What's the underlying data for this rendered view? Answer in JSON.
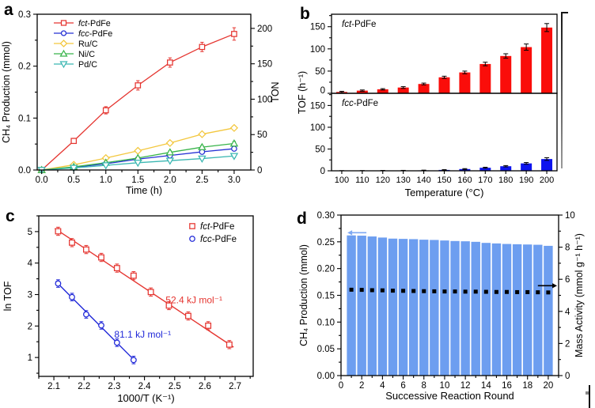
{
  "figure": {
    "background": "#ffffff",
    "panels": [
      {
        "label": "a"
      },
      {
        "label": "b"
      },
      {
        "label": "c"
      },
      {
        "label": "d"
      }
    ]
  },
  "chart_data": [
    {
      "panel": "a",
      "type": "line",
      "xlabel": "Time (h)",
      "ylabel": "CH₄ Production (mmol)",
      "y2label": "TON",
      "xlim": [
        -0.07,
        3.26
      ],
      "ylim": [
        0,
        0.3
      ],
      "y2lim": [
        0,
        220
      ],
      "xticks": [
        0.0,
        0.5,
        1.0,
        1.5,
        2.0,
        2.5,
        3.0
      ],
      "xtick_labels": [
        "0.0",
        "0.5",
        "1.0",
        "1.5",
        "2.0",
        "2.5",
        "3.0"
      ],
      "yticks": [
        0.0,
        0.1,
        0.2,
        0.3
      ],
      "ytick_labels": [
        "0.0",
        "0.1",
        "0.2",
        "0.3"
      ],
      "y2ticks": [
        0,
        50,
        100,
        150,
        200
      ],
      "y2tick_labels": [
        "0",
        "50",
        "100",
        "150",
        "200"
      ],
      "x": [
        0,
        0.5,
        1.0,
        1.5,
        2.0,
        2.5,
        3.0
      ],
      "legend_position": "top-left",
      "grid": false,
      "series": [
        {
          "name": "fct-PdFe",
          "marker": "square",
          "color": "#e53530",
          "values": [
            0,
            0.056,
            0.115,
            0.163,
            0.207,
            0.237,
            0.262
          ],
          "errors": [
            0.002,
            0.005,
            0.007,
            0.009,
            0.009,
            0.009,
            0.012
          ]
        },
        {
          "name": "fcc-PdFe",
          "marker": "circle",
          "color": "#2530d4",
          "values": [
            0,
            0.005,
            0.012,
            0.021,
            0.028,
            0.035,
            0.041
          ],
          "errors": [
            0.001,
            0.001,
            0.002,
            0.002,
            0.002,
            0.002,
            0.003
          ]
        },
        {
          "name": "Ru/C",
          "marker": "diamond",
          "color": "#f3c73e",
          "values": [
            0,
            0.01,
            0.023,
            0.037,
            0.052,
            0.069,
            0.081
          ],
          "errors": [
            0.001,
            0.002,
            0.002,
            0.003,
            0.003,
            0.003,
            0.004
          ]
        },
        {
          "name": "Ni/C",
          "marker": "triangle-up",
          "color": "#38b44a",
          "values": [
            0,
            0.006,
            0.014,
            0.023,
            0.034,
            0.044,
            0.051
          ],
          "errors": [
            0.001,
            0.002,
            0.002,
            0.002,
            0.003,
            0.003,
            0.004
          ]
        },
        {
          "name": "Pd/C",
          "marker": "triangle-down",
          "color": "#3bb7b2",
          "values": [
            0,
            0.004,
            0.009,
            0.014,
            0.018,
            0.022,
            0.027
          ],
          "errors": [
            0.001,
            0.001,
            0.002,
            0.002,
            0.002,
            0.002,
            0.003
          ]
        }
      ]
    },
    {
      "panel": "b",
      "type": "bar",
      "xlabel": "Temperature (°C)",
      "ylabel": "TOF (h⁻¹)",
      "categories": [
        "100",
        "110",
        "120",
        "130",
        "140",
        "150",
        "160",
        "170",
        "180",
        "190",
        "200"
      ],
      "ylim": [
        0,
        178
      ],
      "yticks": [
        0,
        50,
        100,
        150
      ],
      "ytick_labels": [
        "0",
        "50",
        "100",
        "150"
      ],
      "grid": false,
      "subpanels": [
        {
          "name": "fct-PdFe",
          "color": "#fa0d0a",
          "values": [
            3,
            6,
            9,
            13,
            21,
            36,
            47,
            66,
            84,
            104,
            148
          ],
          "errors": [
            1.5,
            1.5,
            1.5,
            2,
            2,
            2.5,
            3,
            4,
            5,
            7,
            9
          ]
        },
        {
          "name": "fcc-PdFe",
          "color": "#0d14ee",
          "values": [
            0.2,
            0.3,
            0.5,
            0.7,
            1.0,
            2.0,
            4.0,
            7.0,
            10.5,
            17,
            27
          ],
          "errors": [
            0.2,
            0.2,
            0.3,
            0.3,
            0.5,
            0.6,
            1.0,
            1.2,
            1.5,
            2,
            3
          ]
        }
      ]
    },
    {
      "panel": "c",
      "type": "scatter",
      "xlabel": "1000/T (K⁻¹)",
      "ylabel": "ln TOF",
      "xlim": [
        2.05,
        2.76
      ],
      "ylim": [
        0.4,
        5.5
      ],
      "xticks": [
        2.1,
        2.2,
        2.3,
        2.4,
        2.5,
        2.6,
        2.7
      ],
      "xtick_labels": [
        "2.1",
        "2.2",
        "2.3",
        "2.4",
        "2.5",
        "2.6",
        "2.7"
      ],
      "yticks": [
        1,
        2,
        3,
        4,
        5
      ],
      "ytick_labels": [
        "1",
        "2",
        "3",
        "4",
        "5"
      ],
      "legend_position": "top-right",
      "grid": false,
      "series": [
        {
          "name": "fct-PdFe",
          "marker": "square",
          "color": "#e53530",
          "x": [
            2.114,
            2.16,
            2.207,
            2.257,
            2.309,
            2.364,
            2.421,
            2.481,
            2.545,
            2.611,
            2.681
          ],
          "y": [
            5.01,
            4.65,
            4.43,
            4.18,
            3.84,
            3.6,
            3.08,
            2.65,
            2.32,
            2.01,
            1.41
          ],
          "yerr": 0.13,
          "fit": {
            "x1": 2.103,
            "y1": 5.1,
            "x2": 2.695,
            "y2": 1.33
          },
          "annotation": {
            "text": "52.4 kJ mol⁻¹",
            "x": 2.47,
            "y": 2.72
          }
        },
        {
          "name": "fcc-PdFe",
          "marker": "circle",
          "color": "#2028d8",
          "x": [
            2.114,
            2.16,
            2.207,
            2.257,
            2.309,
            2.364
          ],
          "y": [
            3.35,
            2.92,
            2.37,
            2.02,
            1.47,
            0.92
          ],
          "yerr": 0.12,
          "fit": {
            "x1": 2.106,
            "y1": 3.42,
            "x2": 2.372,
            "y2": 0.86
          },
          "annotation": {
            "text": "81.1 kJ mol⁻¹",
            "x": 2.3,
            "y": 1.63
          }
        }
      ]
    },
    {
      "panel": "d",
      "type": "bar",
      "xlabel": "Successive Reaction Round",
      "ylabel": "CH₄ Production (mmol)",
      "y2label": "Mass Activity (mmol g⁻¹ h⁻¹)",
      "xlim": [
        0,
        21
      ],
      "ylim": [
        0,
        0.3
      ],
      "y2lim": [
        0,
        10
      ],
      "xticks": [
        0,
        2,
        4,
        6,
        8,
        10,
        12,
        14,
        16,
        18,
        20
      ],
      "xtick_labels": [
        "0",
        "2",
        "4",
        "6",
        "8",
        "10",
        "12",
        "14",
        "16",
        "18",
        "20"
      ],
      "yticks": [
        0.0,
        0.05,
        0.1,
        0.15,
        0.2,
        0.25,
        0.3
      ],
      "ytick_labels": [
        "0.00",
        "0.05",
        "0.10",
        "0.15",
        "0.20",
        "0.25",
        "0.30"
      ],
      "y2ticks": [
        0,
        2,
        4,
        6,
        8,
        10
      ],
      "y2tick_labels": [
        "0",
        "2",
        "4",
        "6",
        "8",
        "10"
      ],
      "rounds": [
        1,
        2,
        3,
        4,
        5,
        6,
        7,
        8,
        9,
        10,
        11,
        12,
        13,
        14,
        15,
        16,
        17,
        18,
        19,
        20
      ],
      "grid": false,
      "bars": {
        "name": "CH₄ Production",
        "color": "#6d9ef0",
        "values": [
          0.262,
          0.2615,
          0.26,
          0.258,
          0.256,
          0.2555,
          0.255,
          0.254,
          0.2535,
          0.2525,
          0.2515,
          0.251,
          0.25,
          0.248,
          0.247,
          0.246,
          0.2455,
          0.245,
          0.2445,
          0.2425
        ]
      },
      "points": {
        "name": "Mass Activity",
        "color": "#000000",
        "values": [
          5.35,
          5.34,
          5.32,
          5.31,
          5.29,
          5.28,
          5.27,
          5.26,
          5.25,
          5.24,
          5.24,
          5.23,
          5.23,
          5.22,
          5.21,
          5.21,
          5.2,
          5.2,
          5.19,
          5.18
        ]
      },
      "arrows": {
        "left": {
          "color": "#7fa9f2",
          "y": 0.267,
          "x_from": 2.45,
          "x_to": 0.62
        },
        "right": {
          "color": "#000000",
          "y2": 5.6,
          "x_from": 19.0,
          "x_to": 20.85
        }
      }
    }
  ]
}
